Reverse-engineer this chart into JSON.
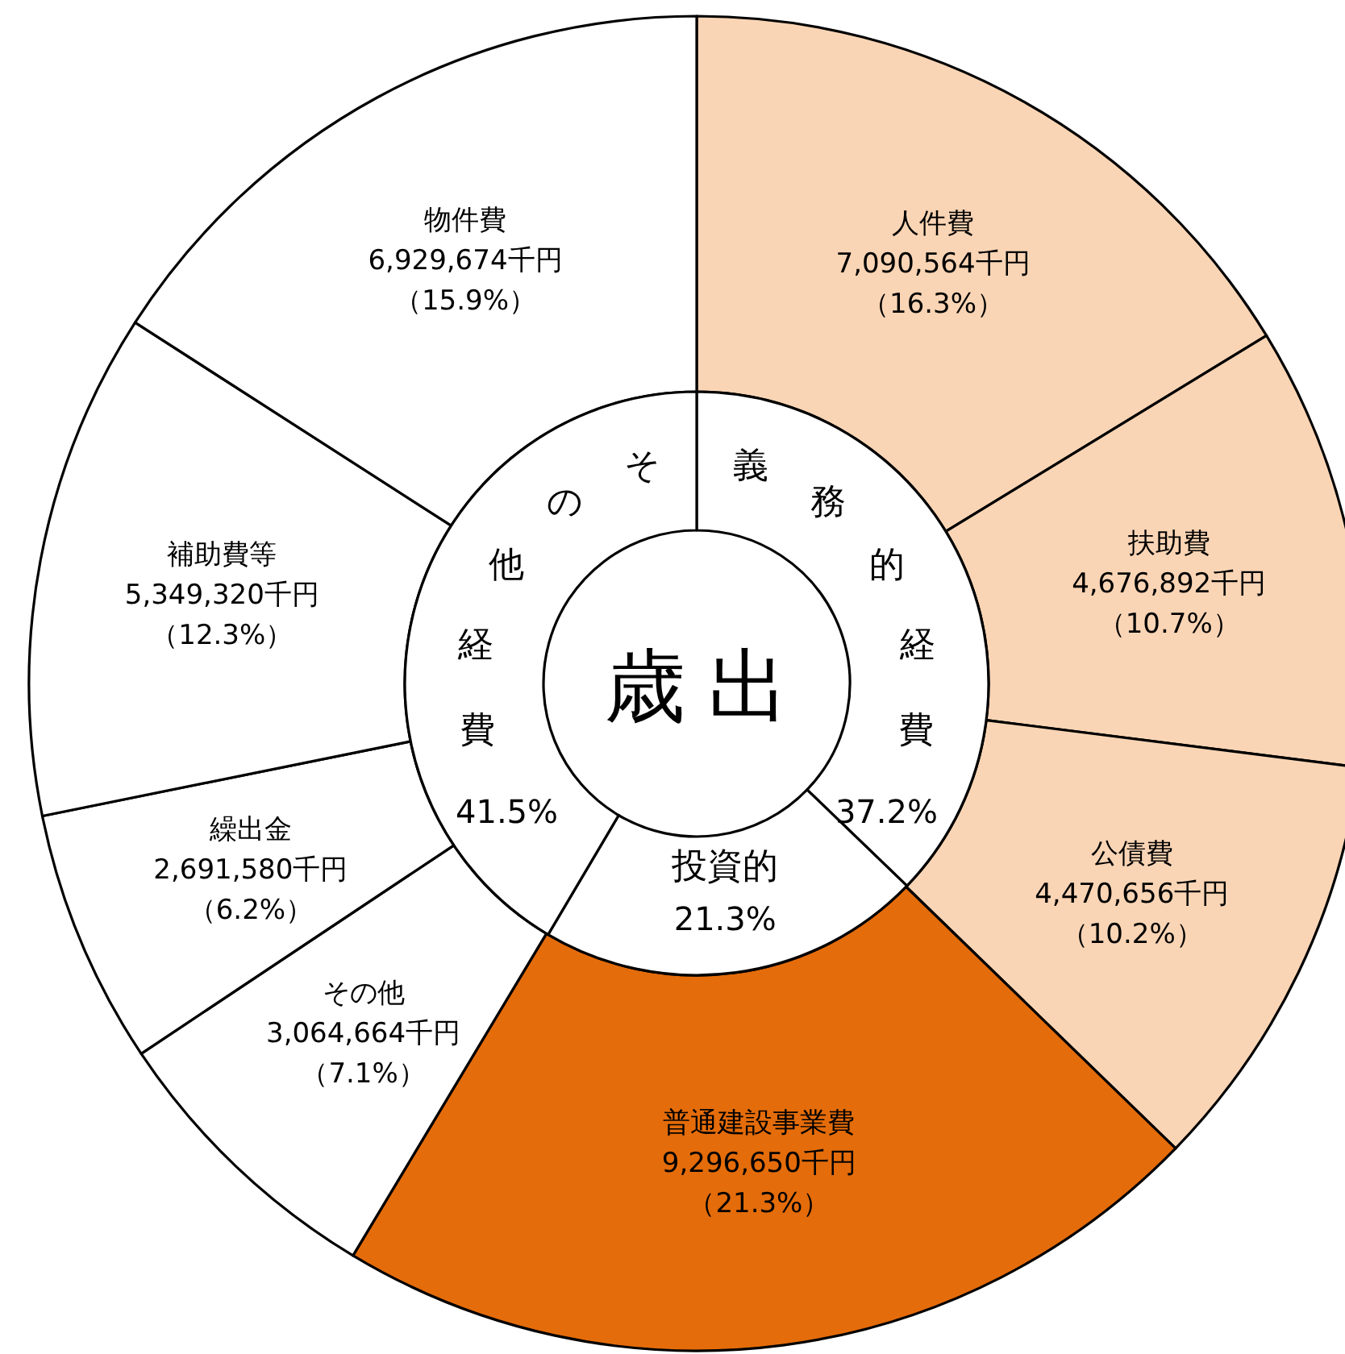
{
  "chart_data": [
    {
      "type": "donut",
      "categories": [
        "人件費",
        "扶助費",
        "公債費",
        "普通建設事業費",
        "その他",
        "繰出金",
        "補助費等",
        "物件費"
      ],
      "values": [
        7090564,
        4676892,
        4470656,
        9296650,
        3064664,
        2691580,
        5349320,
        6929674
      ],
      "colors": [
        "#fad5b5",
        "#fad5b5",
        "#fad5b5",
        "#e46c0a",
        "#ffffff",
        "#ffffff",
        "#ffffff",
        "#ffffff"
      ],
      "value_labels": [
        "7,090,564千円（16.3%）",
        "4,676,892千円（10.7%）",
        "4,470,656千円（10.2%）",
        "9,296,650千円（21.3%）",
        "3,064,664千円（7.1%）",
        "2,691,580千円（6.2%）",
        "5,349,320千円（12.3%）",
        "6,929,674千円（15.9%）"
      ]
    },
    {
      "type": "donut",
      "title": "歳出",
      "categories": [
        "義務的経費",
        "投資的",
        "その他経費"
      ],
      "values": [
        37.2,
        21.3,
        41.5
      ],
      "colors": [
        "#ffffff",
        "#ffffff",
        "#ffffff"
      ],
      "value_labels": [
        "37.2%",
        "21.3%",
        "41.5%"
      ]
    }
  ]
}
